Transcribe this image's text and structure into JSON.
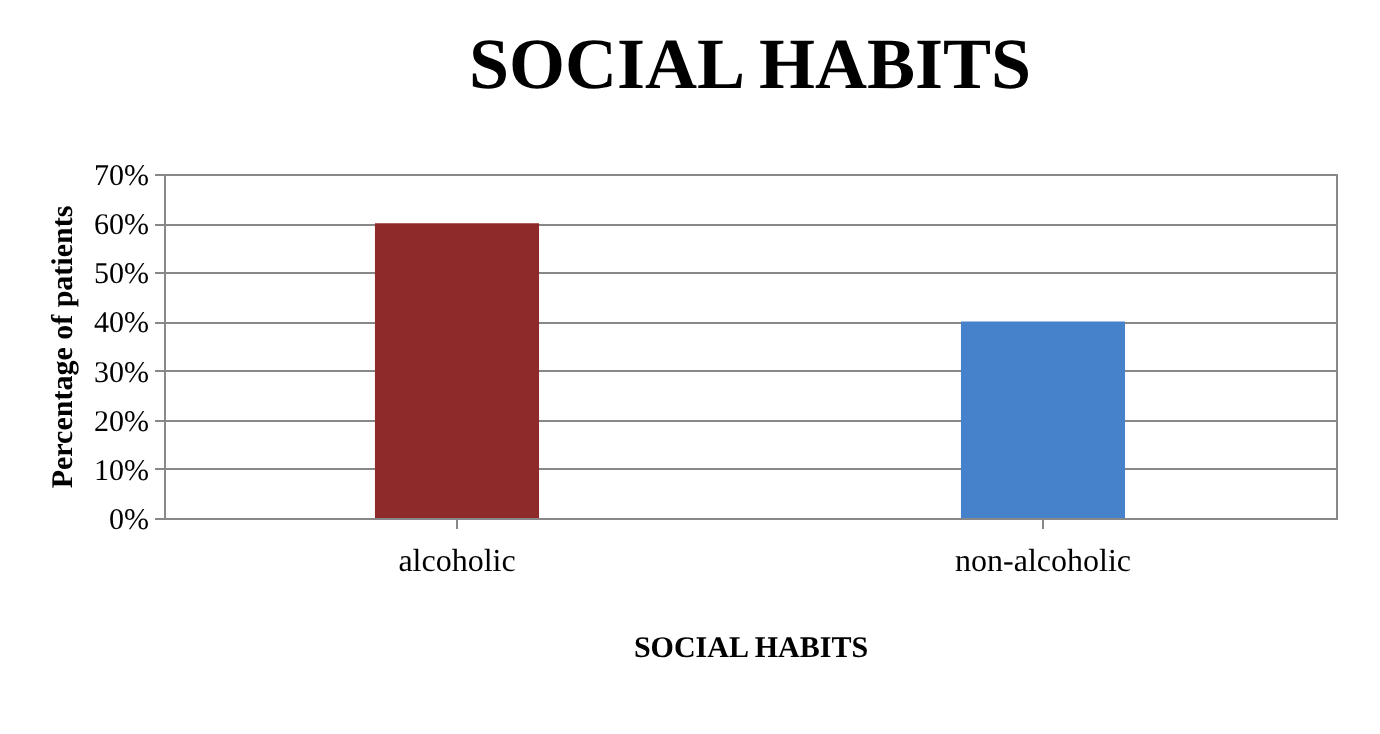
{
  "chart_data": {
    "type": "bar",
    "title": "SOCIAL HABITS",
    "xlabel": "SOCIAL HABITS",
    "ylabel": "Percentage of patients",
    "categories": [
      "alcoholic",
      "non-alcoholic"
    ],
    "values": [
      60,
      40
    ],
    "colors": [
      "#8e2a2a",
      "#4682cc"
    ],
    "ylim": [
      0,
      70
    ],
    "yticks": [
      {
        "value": 0,
        "label": "0%"
      },
      {
        "value": 10,
        "label": "10%"
      },
      {
        "value": 20,
        "label": "20%"
      },
      {
        "value": 30,
        "label": "30%"
      },
      {
        "value": 40,
        "label": "40%"
      },
      {
        "value": 50,
        "label": "50%"
      },
      {
        "value": 60,
        "label": "60%"
      },
      {
        "value": 70,
        "label": "70%"
      }
    ],
    "grid": "y"
  }
}
